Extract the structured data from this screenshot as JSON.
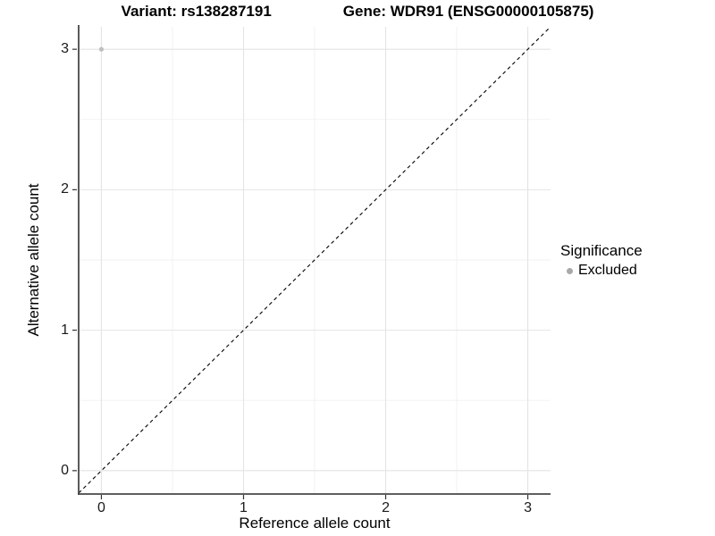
{
  "chart_data": {
    "type": "scatter",
    "title_variant": "Variant: rs138287191",
    "title_gene": "Gene: WDR91 (ENSG00000105875)",
    "xlabel": "Reference allele count",
    "ylabel": "Alternative allele count",
    "xlim": [
      -0.16,
      3.16
    ],
    "ylim": [
      -0.16,
      3.16
    ],
    "x_ticks": [
      0,
      1,
      2,
      3
    ],
    "y_ticks": [
      0,
      1,
      2,
      3
    ],
    "x_minor_ticks": [
      0.5,
      1.5,
      2.5
    ],
    "y_minor_ticks": [
      0.5,
      1.5,
      2.5
    ],
    "grid": true,
    "identity_line": {
      "style": "dashed",
      "slope": 1,
      "intercept": 0,
      "color": "#000000"
    },
    "series": [
      {
        "name": "Excluded",
        "color": "#bfbfbf",
        "points": [
          {
            "x": 0,
            "y": 3
          }
        ]
      }
    ],
    "legend": {
      "position": "right",
      "title": "Significance",
      "items": [
        {
          "label": "Excluded",
          "color": "#a9a9a9"
        }
      ]
    },
    "colors": {
      "grid_major": "#e4e4e4",
      "grid_minor": "#f1f1f1",
      "axis_line": "#474747",
      "tick_mark": "#333333"
    }
  }
}
